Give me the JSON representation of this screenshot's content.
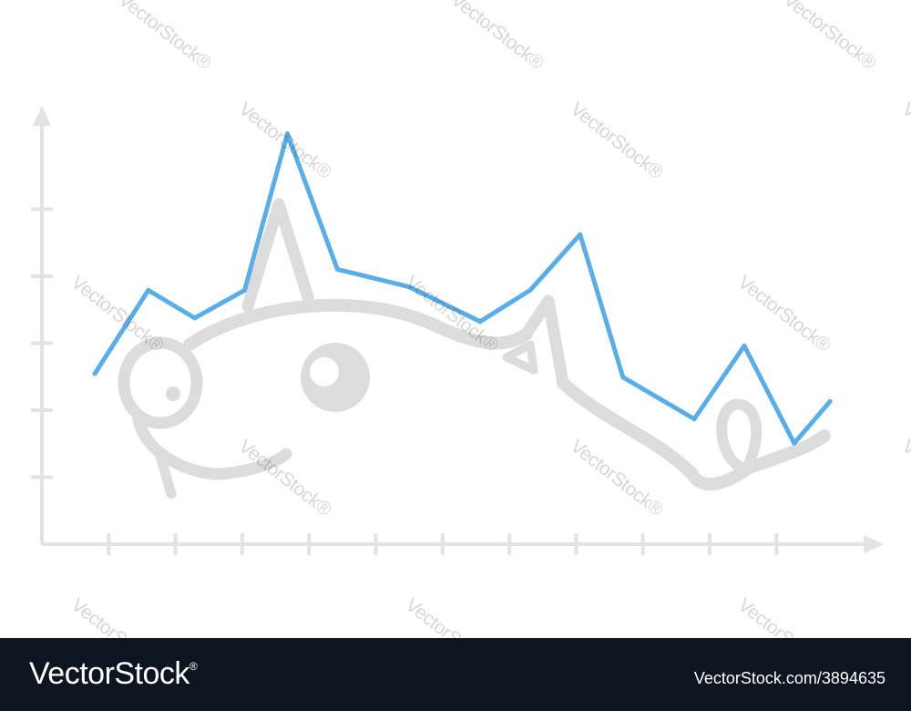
{
  "chart_data": {
    "type": "line",
    "title": "",
    "xlabel": "",
    "ylabel": "",
    "x": [
      0,
      0.75,
      1.4,
      2.1,
      2.7,
      3.4,
      4.4,
      5.4,
      6.1,
      6.8,
      7.4,
      8.4,
      9.1,
      9.8,
      10.3
    ],
    "ylim": [
      0,
      6
    ],
    "xlim": [
      -0.8,
      11
    ],
    "grid": false,
    "legend": "none",
    "series": [
      {
        "color": "#5aaee8",
        "values": [
          2.45,
          3.65,
          3.25,
          3.65,
          5.9,
          3.95,
          3.7,
          3.2,
          3.65,
          4.45,
          2.4,
          1.8,
          2.85,
          1.45,
          2.05
        ]
      }
    ],
    "axis_color": "#e3e3e3",
    "y_tick_count": 5,
    "x_tick_count": 11
  },
  "illustration": {
    "name": "cartoon-pig",
    "color": "#dcdcdc"
  },
  "watermark": {
    "text": "VectorStock",
    "reg_mark": "®"
  },
  "footer": {
    "brand": "VectorStock",
    "reg_mark": "®",
    "credit": "VectorStock.com/3894635"
  }
}
